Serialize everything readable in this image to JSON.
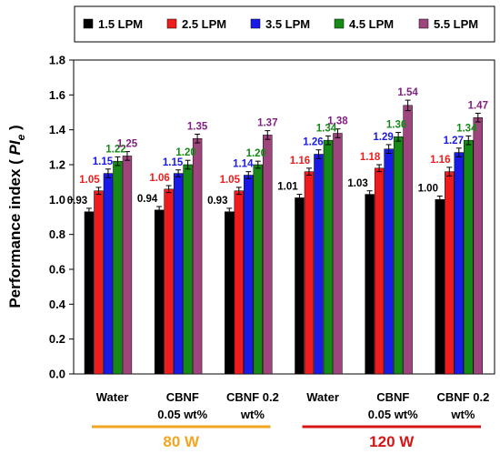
{
  "chart_data": {
    "type": "bar",
    "ylabel_main": "Performance index ( ",
    "ylabel_pi": "PI",
    "ylabel_sub": "e",
    "ylabel_end": " )",
    "ylim": [
      0,
      1.8
    ],
    "yticks": [
      "0.0",
      "0.2",
      "0.4",
      "0.6",
      "0.8",
      "1.0",
      "1.2",
      "1.4",
      "1.6",
      "1.8"
    ],
    "categories": [
      [
        "Water"
      ],
      [
        "CBNF",
        "0.05 wt%"
      ],
      [
        "CBNF 0.2",
        "wt%"
      ],
      [
        "Water"
      ],
      [
        "CBNF",
        "0.05 wt%"
      ],
      [
        "CBNF 0.2",
        "wt%"
      ]
    ],
    "groups": [
      {
        "label": "80 W",
        "color": "#f2a520"
      },
      {
        "label": "120 W",
        "color": "#d41616"
      }
    ],
    "legend_position": "top",
    "series": [
      {
        "name": "1.5 LPM",
        "color": "#000000",
        "values": [
          0.93,
          0.94,
          0.93,
          1.01,
          1.03,
          1.0
        ],
        "labels": [
          "0.93",
          "0.94",
          "0.93",
          "1.01",
          "1.03",
          "1.00"
        ],
        "errors": [
          0.02,
          0.02,
          0.02,
          0.02,
          0.02,
          0.02
        ]
      },
      {
        "name": "2.5 LPM",
        "color": "#ee1c1c",
        "values": [
          1.05,
          1.06,
          1.05,
          1.16,
          1.18,
          1.16
        ],
        "labels": [
          "1.05",
          "1.06",
          "1.05",
          "1.16",
          "1.18",
          "1.16"
        ],
        "errors": [
          0.02,
          0.02,
          0.02,
          0.02,
          0.02,
          0.025
        ]
      },
      {
        "name": "3.5 LPM",
        "color": "#1a1ae8",
        "values": [
          1.15,
          1.15,
          1.14,
          1.26,
          1.29,
          1.27
        ],
        "labels": [
          "1.15",
          "1.15",
          "1.14",
          "1.26",
          "1.29",
          "1.27"
        ],
        "errors": [
          0.025,
          0.02,
          0.02,
          0.025,
          0.025,
          0.025
        ]
      },
      {
        "name": "4.5 LPM",
        "color": "#168a16",
        "values": [
          1.22,
          1.2,
          1.2,
          1.34,
          1.36,
          1.34
        ],
        "labels": [
          "1.22",
          "1.20",
          "1.20",
          "1.34",
          "1.36",
          "1.34"
        ],
        "errors": [
          0.025,
          0.025,
          0.02,
          0.025,
          0.025,
          0.025
        ]
      },
      {
        "name": "5.5 LPM",
        "color": "#a0447e",
        "values": [
          1.25,
          1.35,
          1.37,
          1.38,
          1.54,
          1.47
        ],
        "labels": [
          "1.25",
          "1.35",
          "1.37",
          "1.38",
          "1.54",
          "1.47"
        ],
        "errors": [
          0.025,
          0.025,
          0.025,
          0.025,
          0.03,
          0.025
        ]
      }
    ],
    "label_colors": [
      "#000000",
      "#ee1c1c",
      "#1a1ae8",
      "#168a16",
      "#7f1f7f"
    ]
  }
}
